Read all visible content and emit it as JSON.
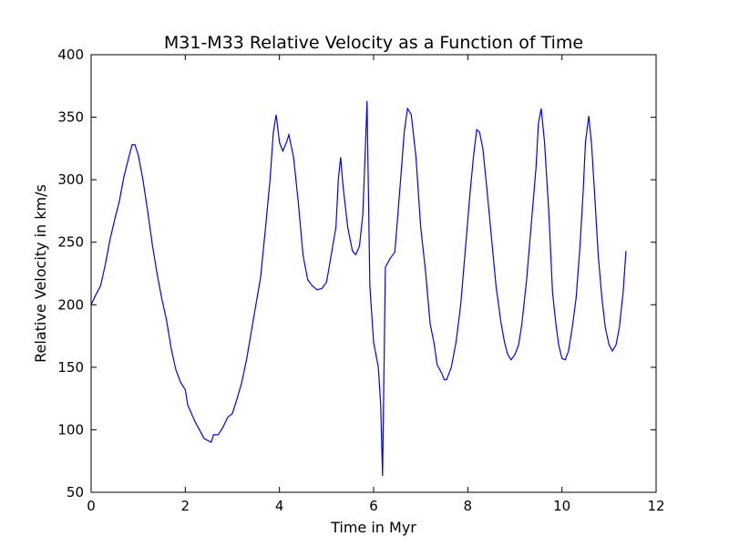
{
  "chart_data": {
    "type": "line",
    "title": "M31-M33 Relative Velocity as a Function of Time",
    "x_label": "Time in Myr",
    "y_label": "Relative Velocity in km/s",
    "xlim": [
      0,
      12
    ],
    "xticks": [
      0,
      2,
      4,
      6,
      8,
      10,
      12
    ],
    "ylim": [
      50,
      400
    ],
    "yticks": [
      50,
      100,
      150,
      200,
      250,
      300,
      350,
      400
    ],
    "series": [
      {
        "color": "#0000ff",
        "x": [
          0,
          0.1,
          0.2,
          0.3,
          0.4,
          0.5,
          0.6,
          0.7,
          0.8,
          0.87,
          0.93,
          1.0,
          1.1,
          1.2,
          1.3,
          1.4,
          1.5,
          1.6,
          1.7,
          1.8,
          1.9,
          2.0,
          2.05,
          2.2,
          2.3,
          2.4,
          2.55,
          2.6,
          2.7,
          2.8,
          2.9,
          3.0,
          3.1,
          3.2,
          3.3,
          3.4,
          3.5,
          3.6,
          3.7,
          3.8,
          3.87,
          3.93,
          4.0,
          4.07,
          4.15,
          4.2,
          4.3,
          4.4,
          4.5,
          4.6,
          4.7,
          4.8,
          4.9,
          5.0,
          5.1,
          5.2,
          5.25,
          5.3,
          5.35,
          5.45,
          5.55,
          5.62,
          5.7,
          5.77,
          5.82,
          5.86,
          5.92,
          6.0,
          6.1,
          6.15,
          6.19,
          6.25,
          6.35,
          6.45,
          6.5,
          6.6,
          6.65,
          6.72,
          6.8,
          6.9,
          7.0,
          7.1,
          7.2,
          7.28,
          7.35,
          7.45,
          7.5,
          7.55,
          7.65,
          7.75,
          7.85,
          7.95,
          8.05,
          8.12,
          8.19,
          8.25,
          8.32,
          8.4,
          8.5,
          8.6,
          8.7,
          8.78,
          8.85,
          8.92,
          9.0,
          9.08,
          9.15,
          9.25,
          9.35,
          9.45,
          9.5,
          9.56,
          9.63,
          9.72,
          9.8,
          9.87,
          9.93,
          10.0,
          10.07,
          10.14,
          10.22,
          10.3,
          10.38,
          10.45,
          10.5,
          10.57,
          10.63,
          10.7,
          10.77,
          10.85,
          10.92,
          11.0,
          11.07,
          11.15,
          11.22,
          11.3,
          11.36
        ],
        "values": [
          200,
          208,
          215,
          232,
          252,
          268,
          283,
          303,
          318,
          328,
          328,
          320,
          300,
          275,
          248,
          225,
          205,
          188,
          165,
          148,
          138,
          132,
          120,
          107,
          100,
          93,
          90,
          96,
          96,
          102,
          110,
          113,
          125,
          138,
          156,
          178,
          200,
          222,
          260,
          300,
          338,
          352,
          330,
          323,
          330,
          336,
          318,
          282,
          240,
          220,
          215,
          212,
          213,
          218,
          240,
          262,
          300,
          318,
          295,
          262,
          243,
          240,
          247,
          272,
          320,
          363,
          215,
          170,
          150,
          120,
          63,
          230,
          237,
          242,
          265,
          313,
          338,
          357,
          352,
          318,
          262,
          228,
          185,
          170,
          152,
          145,
          140,
          140,
          150,
          170,
          200,
          245,
          290,
          318,
          340,
          338,
          325,
          295,
          255,
          215,
          187,
          170,
          160,
          156,
          160,
          168,
          185,
          220,
          265,
          310,
          345,
          357,
          330,
          275,
          210,
          185,
          168,
          157,
          156,
          163,
          182,
          205,
          245,
          290,
          330,
          351,
          328,
          285,
          240,
          205,
          182,
          168,
          163,
          168,
          182,
          210,
          243
        ]
      }
    ]
  }
}
